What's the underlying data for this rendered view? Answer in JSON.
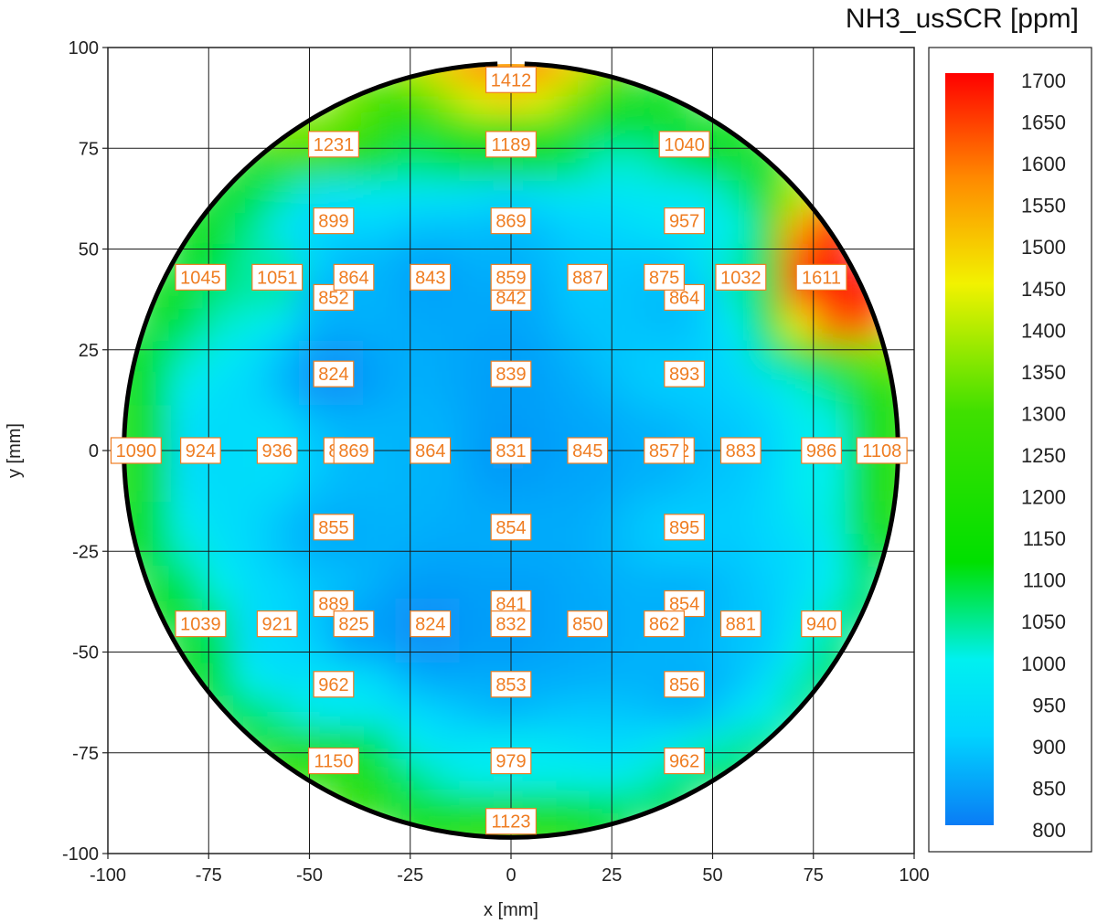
{
  "chart_data": {
    "type": "heatmap",
    "title": "NH3_usSCR [ppm]",
    "xlabel": "x [mm]",
    "ylabel": "y [mm]",
    "xlim": [
      -100,
      100
    ],
    "ylim": [
      -100,
      100
    ],
    "x_ticks": [
      "-100",
      "-75",
      "-50",
      "-25",
      "0",
      "25",
      "50",
      "75",
      "100"
    ],
    "y_ticks": [
      "100",
      "75",
      "50",
      "25",
      "0",
      "-25",
      "-50",
      "-75",
      "-100"
    ],
    "grid": true,
    "colorbar": {
      "position": "right",
      "range": [
        800,
        1700
      ],
      "ticks": [
        "1700",
        "1650",
        "1600",
        "1550",
        "1500",
        "1450",
        "1400",
        "1350",
        "1300",
        "1250",
        "1200",
        "1150",
        "1100",
        "1050",
        "1000",
        "950",
        "900",
        "850",
        "800"
      ],
      "colors": [
        "#0a7cf5",
        "#00f2ff",
        "#00e000",
        "#f2f200",
        "#ff8a00",
        "#ff0000"
      ]
    },
    "circle_radius_mm": 96,
    "points": [
      {
        "x": 0,
        "y": 92,
        "label": "1412"
      },
      {
        "x": -44,
        "y": 76,
        "label": "1231"
      },
      {
        "x": 0,
        "y": 76,
        "label": "1189"
      },
      {
        "x": 43,
        "y": 76,
        "label": "1040"
      },
      {
        "x": -44,
        "y": 57,
        "label": "899"
      },
      {
        "x": 0,
        "y": 57,
        "label": "869"
      },
      {
        "x": 43,
        "y": 57,
        "label": "957"
      },
      {
        "x": -77,
        "y": 43,
        "label": "1045"
      },
      {
        "x": -58,
        "y": 43,
        "label": "1051"
      },
      {
        "x": -44,
        "y": 38,
        "label": "852"
      },
      {
        "x": -39,
        "y": 43,
        "label": "864"
      },
      {
        "x": -20,
        "y": 43,
        "label": "843"
      },
      {
        "x": 0,
        "y": 38,
        "label": "842"
      },
      {
        "x": 0,
        "y": 43,
        "label": "859"
      },
      {
        "x": 19,
        "y": 43,
        "label": "887"
      },
      {
        "x": 43,
        "y": 38,
        "label": "864"
      },
      {
        "x": 38,
        "y": 43,
        "label": "875"
      },
      {
        "x": 57,
        "y": 43,
        "label": "1032"
      },
      {
        "x": 77,
        "y": 43,
        "label": "1611"
      },
      {
        "x": -44,
        "y": 19,
        "label": "824"
      },
      {
        "x": 0,
        "y": 19,
        "label": "839"
      },
      {
        "x": 43,
        "y": 19,
        "label": "893"
      },
      {
        "x": -93,
        "y": 0,
        "label": "1090"
      },
      {
        "x": -77,
        "y": 0,
        "label": "924"
      },
      {
        "x": -58,
        "y": 0,
        "label": "936"
      },
      {
        "x": -44,
        "y": 0,
        "label": "8"
      },
      {
        "x": -39,
        "y": 0,
        "label": "869"
      },
      {
        "x": -20,
        "y": 0,
        "label": "864"
      },
      {
        "x": 0,
        "y": 0,
        "label": "831"
      },
      {
        "x": 19,
        "y": 0,
        "label": "845"
      },
      {
        "x": 43,
        "y": 0,
        "label": "2"
      },
      {
        "x": 38,
        "y": 0,
        "label": "857"
      },
      {
        "x": 57,
        "y": 0,
        "label": "883"
      },
      {
        "x": 77,
        "y": 0,
        "label": "986"
      },
      {
        "x": 92,
        "y": 0,
        "label": "1108"
      },
      {
        "x": -44,
        "y": -19,
        "label": "855"
      },
      {
        "x": 0,
        "y": -19,
        "label": "854"
      },
      {
        "x": 43,
        "y": -19,
        "label": "895"
      },
      {
        "x": -44,
        "y": -38,
        "label": "889"
      },
      {
        "x": 0,
        "y": -38,
        "label": "841"
      },
      {
        "x": 43,
        "y": -38,
        "label": "854"
      },
      {
        "x": -77,
        "y": -43,
        "label": "1039"
      },
      {
        "x": -58,
        "y": -43,
        "label": "921"
      },
      {
        "x": -39,
        "y": -43,
        "label": "825"
      },
      {
        "x": -20,
        "y": -43,
        "label": "824"
      },
      {
        "x": 0,
        "y": -43,
        "label": "832"
      },
      {
        "x": 19,
        "y": -43,
        "label": "850"
      },
      {
        "x": 38,
        "y": -43,
        "label": "862"
      },
      {
        "x": 57,
        "y": -43,
        "label": "881"
      },
      {
        "x": 77,
        "y": -43,
        "label": "940"
      },
      {
        "x": -44,
        "y": -58,
        "label": "962"
      },
      {
        "x": 0,
        "y": -58,
        "label": "853"
      },
      {
        "x": 43,
        "y": -58,
        "label": "856"
      },
      {
        "x": -44,
        "y": -77,
        "label": "1150"
      },
      {
        "x": 0,
        "y": -77,
        "label": "979"
      },
      {
        "x": 43,
        "y": -77,
        "label": "962"
      },
      {
        "x": 0,
        "y": -92,
        "label": "1123"
      }
    ]
  }
}
